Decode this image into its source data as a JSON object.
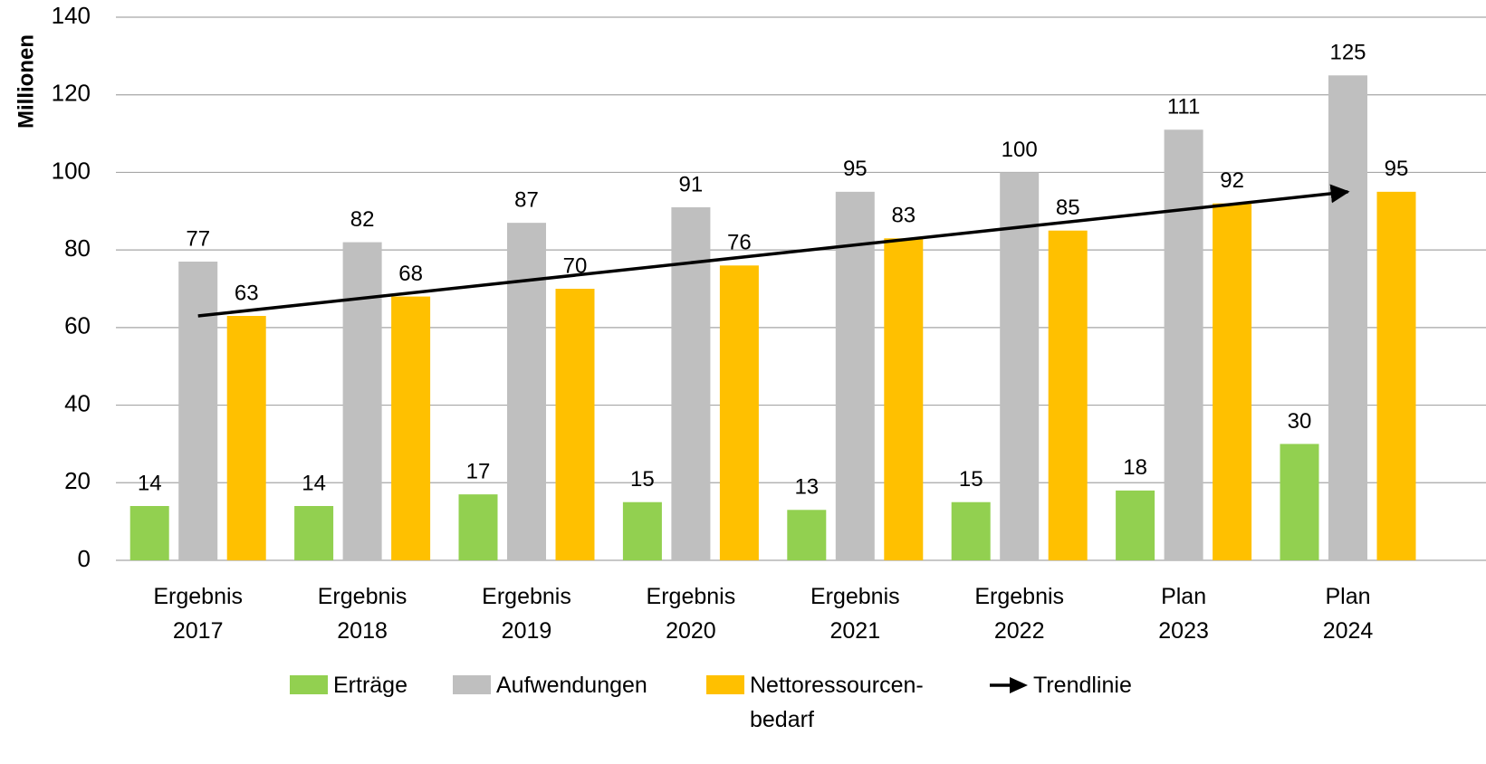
{
  "chart_data": {
    "type": "bar",
    "y_label": "Millionen",
    "categories": [
      "Ergebnis 2017",
      "Ergebnis 2018",
      "Ergebnis 2019",
      "Ergebnis 2020",
      "Ergebnis 2021",
      "Ergebnis 2022",
      "Plan 2023",
      "Plan 2024"
    ],
    "series": [
      {
        "name": "Erträge",
        "color": "#92d050",
        "values": [
          14,
          14,
          17,
          15,
          13,
          15,
          18,
          30
        ]
      },
      {
        "name": "Aufwendungen",
        "color": "#bfbfbf",
        "values": [
          77,
          82,
          87,
          91,
          95,
          100,
          111,
          125
        ]
      },
      {
        "name": "Nettoressourcen-bedarf",
        "color": "#ffc000",
        "values": [
          63,
          68,
          70,
          76,
          83,
          85,
          92,
          95
        ]
      }
    ],
    "trend": {
      "name": "Trendlinie",
      "color": "#000000",
      "start": 63,
      "end": 95
    },
    "ylim": [
      0,
      140
    ],
    "yticks": [
      0,
      20,
      40,
      60,
      80,
      100,
      120,
      140
    ],
    "grid": true
  }
}
